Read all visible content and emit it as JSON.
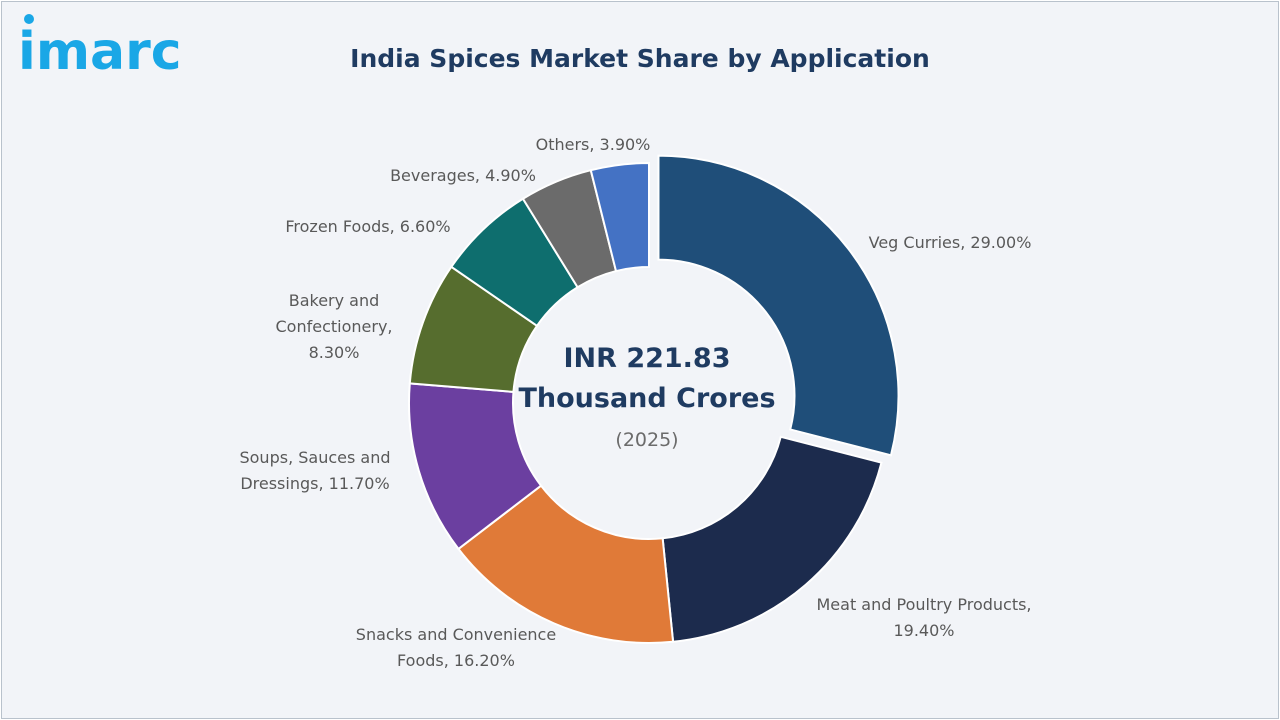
{
  "logo": {
    "text": "imarc",
    "color": "#1aa7e6"
  },
  "title": "India Spices Market Share by Application",
  "center": {
    "line1": "INR 221.83",
    "line2": "Thousand Crores",
    "year": "(2025)"
  },
  "chart_data": {
    "type": "pie",
    "variant": "donut",
    "title": "India Spices Market Share by Application",
    "unit": "%",
    "start": "12 o'clock, clockwise",
    "exploded": "Veg Curries",
    "slices": [
      {
        "name": "Veg Curries",
        "value": 29.0,
        "label_lines": [
          "Veg Curries, 29.00%"
        ],
        "color": "#1f4e79"
      },
      {
        "name": "Meat and Poultry Products",
        "value": 19.4,
        "label_lines": [
          "Meat and Poultry Products,",
          "19.40%"
        ],
        "color": "#1c2b4d"
      },
      {
        "name": "Snacks and Convenience Foods",
        "value": 16.2,
        "label_lines": [
          "Snacks and Convenience",
          "Foods, 16.20%"
        ],
        "color": "#e07a38"
      },
      {
        "name": "Soups, Sauces and Dressings",
        "value": 11.7,
        "label_lines": [
          "Soups, Sauces and",
          "Dressings, 11.70%"
        ],
        "color": "#6b3fa0"
      },
      {
        "name": "Bakery and Confectionery",
        "value": 8.3,
        "label_lines": [
          "Bakery and",
          "Confectionery,",
          "8.30%"
        ],
        "color": "#566d2e"
      },
      {
        "name": "Frozen Foods",
        "value": 6.6,
        "label_lines": [
          "Frozen Foods, 6.60%"
        ],
        "color": "#0e6e6e"
      },
      {
        "name": "Beverages",
        "value": 4.9,
        "label_lines": [
          "Beverages, 4.90%"
        ],
        "color": "#6b6b6b"
      },
      {
        "name": "Others",
        "value": 3.9,
        "label_lines": [
          "Others, 3.90%"
        ],
        "color": "#4472c4"
      }
    ]
  }
}
